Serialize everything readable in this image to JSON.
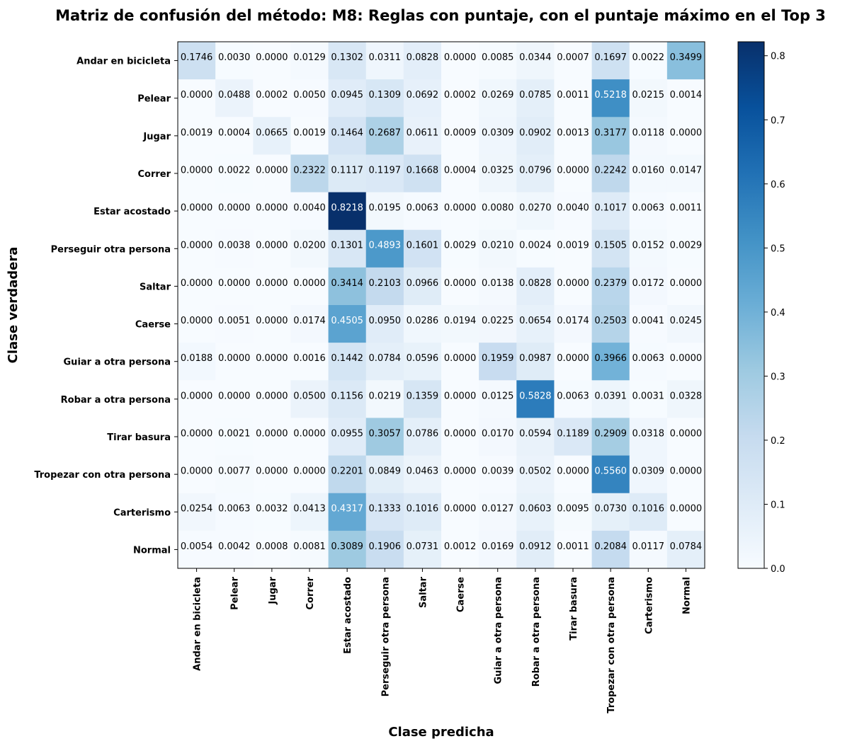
{
  "chart_data": {
    "type": "heatmap",
    "title": "Matriz de confusión del método: M8: Reglas con puntaje, con el puntaje máximo en el Top 3",
    "xlabel": "Clase predicha",
    "ylabel": "Clase verdadera",
    "x_categories": [
      "Andar en bicicleta",
      "Pelear",
      "Jugar",
      "Correr",
      "Estar acostado",
      "Perseguir otra persona",
      "Saltar",
      "Caerse",
      "Guiar a otra persona",
      "Robar a otra persona",
      "Tirar basura",
      "Tropezar con otra persona",
      "Carterismo",
      "Normal"
    ],
    "y_categories": [
      "Andar en bicicleta",
      "Pelear",
      "Jugar",
      "Correr",
      "Estar acostado",
      "Perseguir otra persona",
      "Saltar",
      "Caerse",
      "Guiar a otra persona",
      "Robar a otra persona",
      "Tirar basura",
      "Tropezar con otra persona",
      "Carterismo",
      "Normal"
    ],
    "values": [
      [
        "0.1746",
        "0.0030",
        "0.0000",
        "0.0129",
        "0.1302",
        "0.0311",
        "0.0828",
        "0.0000",
        "0.0085",
        "0.0344",
        "0.0007",
        "0.1697",
        "0.0022",
        "0.3499"
      ],
      [
        "0.0000",
        "0.0488",
        "0.0002",
        "0.0050",
        "0.0945",
        "0.1309",
        "0.0692",
        "0.0002",
        "0.0269",
        "0.0785",
        "0.0011",
        "0.5218",
        "0.0215",
        "0.0014"
      ],
      [
        "0.0019",
        "0.0004",
        "0.0665",
        "0.0019",
        "0.1464",
        "0.2687",
        "0.0611",
        "0.0009",
        "0.0309",
        "0.0902",
        "0.0013",
        "0.3177",
        "0.0118",
        "0.0000"
      ],
      [
        "0.0000",
        "0.0022",
        "0.0000",
        "0.2322",
        "0.1117",
        "0.1197",
        "0.1668",
        "0.0004",
        "0.0325",
        "0.0796",
        "0.0000",
        "0.2242",
        "0.0160",
        "0.0147"
      ],
      [
        "0.0000",
        "0.0000",
        "0.0000",
        "0.0040",
        "0.8218",
        "0.0195",
        "0.0063",
        "0.0000",
        "0.0080",
        "0.0270",
        "0.0040",
        "0.1017",
        "0.0063",
        "0.0011"
      ],
      [
        "0.0000",
        "0.0038",
        "0.0000",
        "0.0200",
        "0.1301",
        "0.4893",
        "0.1601",
        "0.0029",
        "0.0210",
        "0.0024",
        "0.0019",
        "0.1505",
        "0.0152",
        "0.0029"
      ],
      [
        "0.0000",
        "0.0000",
        "0.0000",
        "0.0000",
        "0.3414",
        "0.2103",
        "0.0966",
        "0.0000",
        "0.0138",
        "0.0828",
        "0.0000",
        "0.2379",
        "0.0172",
        "0.0000"
      ],
      [
        "0.0000",
        "0.0051",
        "0.0000",
        "0.0174",
        "0.4505",
        "0.0950",
        "0.0286",
        "0.0194",
        "0.0225",
        "0.0654",
        "0.0174",
        "0.2503",
        "0.0041",
        "0.0245"
      ],
      [
        "0.0188",
        "0.0000",
        "0.0000",
        "0.0016",
        "0.1442",
        "0.0784",
        "0.0596",
        "0.0000",
        "0.1959",
        "0.0987",
        "0.0000",
        "0.3966",
        "0.0063",
        "0.0000"
      ],
      [
        "0.0000",
        "0.0000",
        "0.0000",
        "0.0500",
        "0.1156",
        "0.0219",
        "0.1359",
        "0.0000",
        "0.0125",
        "0.5828",
        "0.0063",
        "0.0391",
        "0.0031",
        "0.0328"
      ],
      [
        "0.0000",
        "0.0021",
        "0.0000",
        "0.0000",
        "0.0955",
        "0.3057",
        "0.0786",
        "0.0000",
        "0.0170",
        "0.0594",
        "0.1189",
        "0.2909",
        "0.0318",
        "0.0000"
      ],
      [
        "0.0000",
        "0.0077",
        "0.0000",
        "0.0000",
        "0.2201",
        "0.0849",
        "0.0463",
        "0.0000",
        "0.0039",
        "0.0502",
        "0.0000",
        "0.5560",
        "0.0309",
        "0.0000"
      ],
      [
        "0.0254",
        "0.0063",
        "0.0032",
        "0.0413",
        "0.4317",
        "0.1333",
        "0.1016",
        "0.0000",
        "0.0127",
        "0.0603",
        "0.0095",
        "0.0730",
        "0.1016",
        "0.0000"
      ],
      [
        "0.0054",
        "0.0042",
        "0.0008",
        "0.0081",
        "0.3089",
        "0.1906",
        "0.0731",
        "0.0012",
        "0.0169",
        "0.0912",
        "0.0011",
        "0.2084",
        "0.0117",
        "0.0784"
      ]
    ],
    "colorbar": {
      "colormap": "Blues",
      "range": [
        0,
        0.8218
      ],
      "ticks": [
        "0.0",
        "0.1",
        "0.2",
        "0.3",
        "0.4",
        "0.5",
        "0.6",
        "0.7",
        "0.8"
      ]
    },
    "grid": false
  }
}
